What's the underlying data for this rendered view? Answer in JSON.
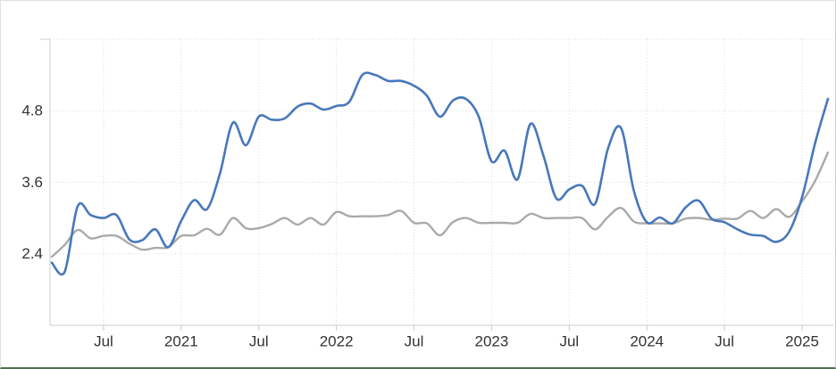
{
  "chart": {
    "background": "#ffffff",
    "container_border_color": "#e0e0e0",
    "bottom_accent_color": "#4e7150",
    "grid_color": "#d9d9d9",
    "axis_line_color": "#cccccc",
    "tick_label_color": "#333333"
  },
  "chart_data": {
    "type": "line",
    "title": "",
    "xlabel": "",
    "ylabel": "",
    "legend": "none",
    "grid": "dotted",
    "x_start": "2020-03",
    "x_end": "2025-03",
    "x_interval": "monthly",
    "x_tick_labels": [
      "Jul",
      "2021",
      "Jul",
      "2022",
      "Jul",
      "2023",
      "Jul",
      "2024",
      "Jul",
      "2025"
    ],
    "x_tick_point_indices": [
      4,
      10,
      16,
      22,
      28,
      34,
      40,
      46,
      52,
      58
    ],
    "y_tick_labels": [
      "2.4",
      "3.6",
      "4.8"
    ],
    "y_ticks": [
      2.4,
      3.6,
      4.8
    ],
    "ylim": [
      1.2,
      6.0
    ],
    "series": [
      {
        "name": "gray",
        "color": "#aaaaaa",
        "line_width": 2.4,
        "values": [
          2.35,
          2.55,
          2.8,
          2.66,
          2.7,
          2.7,
          2.57,
          2.47,
          2.5,
          2.51,
          2.7,
          2.71,
          2.82,
          2.72,
          3.0,
          2.83,
          2.83,
          2.9,
          3.0,
          2.89,
          3.0,
          2.89,
          3.1,
          3.03,
          3.03,
          3.03,
          3.05,
          3.12,
          2.92,
          2.91,
          2.71,
          2.93,
          3.0,
          2.92,
          2.92,
          2.92,
          2.92,
          3.07,
          3.0,
          3.0,
          3.0,
          3.0,
          2.81,
          3.02,
          3.17,
          2.94,
          2.91,
          2.91,
          2.91,
          2.99,
          3.0,
          2.97,
          2.99,
          2.99,
          3.12,
          3.0,
          3.15,
          3.02,
          3.28,
          3.62,
          4.1
        ]
      },
      {
        "name": "blue",
        "color": "#4878bb",
        "line_width": 2.6,
        "values": [
          2.25,
          2.1,
          3.2,
          3.05,
          3.0,
          3.05,
          2.64,
          2.63,
          2.81,
          2.51,
          2.95,
          3.3,
          3.15,
          3.75,
          4.6,
          4.22,
          4.7,
          4.65,
          4.67,
          4.87,
          4.92,
          4.82,
          4.88,
          4.95,
          5.4,
          5.4,
          5.3,
          5.3,
          5.22,
          5.05,
          4.7,
          4.97,
          5.0,
          4.7,
          3.95,
          4.13,
          3.65,
          4.58,
          4.05,
          3.33,
          3.48,
          3.54,
          3.24,
          4.17,
          4.51,
          3.45,
          2.93,
          3.01,
          2.91,
          3.18,
          3.29,
          2.99,
          2.93,
          2.81,
          2.72,
          2.7,
          2.6,
          2.77,
          3.35,
          4.25,
          5.0
        ]
      }
    ]
  }
}
